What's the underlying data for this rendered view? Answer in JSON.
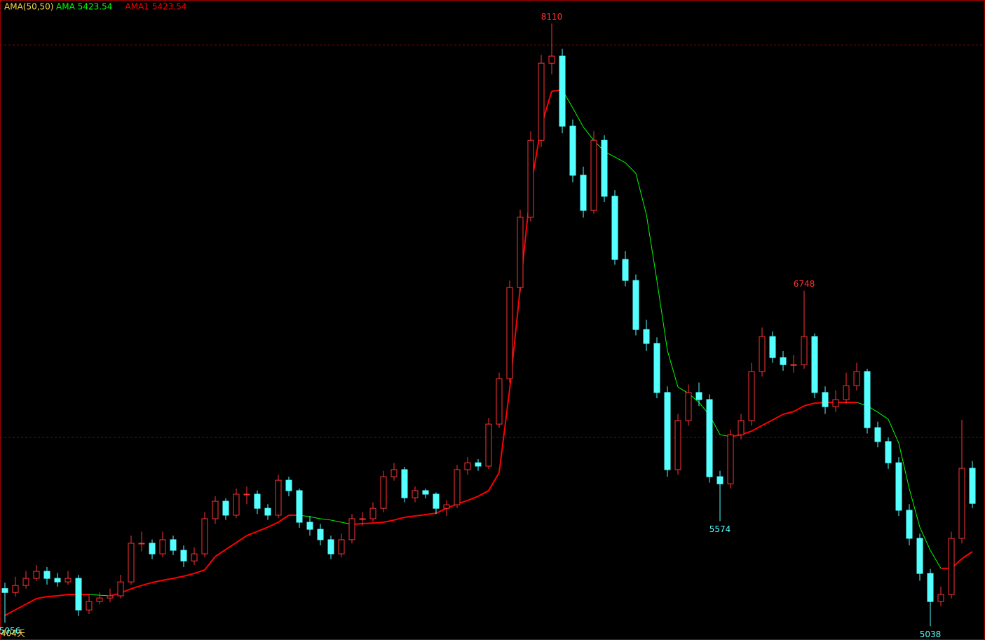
{
  "chart_data": {
    "type": "candlestick",
    "indicator": "AMA(50,50)",
    "legend": [
      {
        "name": "AMA",
        "value": 5423.54,
        "color": "#00ff00"
      },
      {
        "name": "AMA1",
        "value": 5423.54,
        "color": "#ff0000"
      }
    ],
    "period_label": "404天",
    "ylim": [
      4968,
      8229
    ],
    "yticks": [
      6000,
      8000
    ],
    "grid": true,
    "up_color": "#ff3232",
    "down_color": "#54ffff",
    "open": [
      5230,
      5210,
      5246,
      5282,
      5318,
      5282,
      5264,
      5282,
      5121,
      5164,
      5182,
      5193,
      5264,
      5461,
      5461,
      5407,
      5479,
      5425,
      5371,
      5407,
      5586,
      5675,
      5604,
      5711,
      5711,
      5639,
      5604,
      5782,
      5729,
      5568,
      5532,
      5479,
      5407,
      5479,
      5586,
      5586,
      5639,
      5800,
      5836,
      5693,
      5729,
      5711,
      5639,
      5657,
      5836,
      5871,
      5854,
      6068,
      6300,
      6764,
      7122,
      7514,
      7907,
      7943,
      7586,
      7336,
      7157,
      7514,
      7229,
      6907,
      6800,
      6550,
      6479,
      6229,
      5836,
      6086,
      6229,
      6193,
      5800,
      5764,
      6014,
      6086,
      6336,
      6514,
      6407,
      6371,
      6371,
      6514,
      6229,
      6157,
      6193,
      6264,
      6336,
      6050,
      5979,
      5871,
      5629,
      5486,
      5307,
      5164,
      5200,
      5486,
      5843
    ],
    "high": [
      5260,
      5290,
      5320,
      5350,
      5340,
      5310,
      5320,
      5300,
      5200,
      5210,
      5230,
      5300,
      5500,
      5520,
      5480,
      5520,
      5500,
      5450,
      5440,
      5620,
      5700,
      5690,
      5740,
      5750,
      5730,
      5660,
      5810,
      5800,
      5740,
      5600,
      5560,
      5500,
      5510,
      5610,
      5620,
      5670,
      5830,
      5870,
      5850,
      5750,
      5740,
      5720,
      5680,
      5860,
      5900,
      5890,
      6100,
      6330,
      6800,
      7160,
      7560,
      7950,
      8110,
      7980,
      7620,
      7380,
      7560,
      7540,
      7260,
      6950,
      6830,
      6600,
      6510,
      6260,
      6120,
      6270,
      6280,
      6220,
      5830,
      6040,
      6120,
      6380,
      6560,
      6540,
      6440,
      6420,
      6748,
      6530,
      6260,
      6240,
      6330,
      6380,
      6350,
      6080,
      6000,
      5900,
      5660,
      5510,
      5330,
      5240,
      5520,
      6090,
      5880
    ],
    "low": [
      5056,
      5190,
      5230,
      5270,
      5250,
      5240,
      5250,
      5090,
      5100,
      5150,
      5160,
      5180,
      5250,
      5420,
      5380,
      5390,
      5400,
      5340,
      5350,
      5390,
      5560,
      5580,
      5590,
      5660,
      5610,
      5580,
      5590,
      5700,
      5540,
      5500,
      5450,
      5380,
      5390,
      5460,
      5550,
      5570,
      5620,
      5780,
      5670,
      5670,
      5690,
      5610,
      5600,
      5640,
      5810,
      5830,
      5840,
      6050,
      6280,
      6740,
      7100,
      7480,
      7850,
      7550,
      7300,
      7120,
      7140,
      7200,
      6880,
      6770,
      6520,
      6440,
      6200,
      5800,
      5810,
      6060,
      6160,
      5770,
      5574,
      5740,
      5990,
      6060,
      6310,
      6380,
      6340,
      6330,
      6350,
      6200,
      6120,
      6130,
      6170,
      6240,
      6020,
      5950,
      5840,
      5600,
      5450,
      5270,
      5038,
      5140,
      5180,
      5460,
      5640
    ],
    "close": [
      5210,
      5246,
      5282,
      5318,
      5282,
      5264,
      5282,
      5121,
      5164,
      5182,
      5193,
      5264,
      5461,
      5461,
      5407,
      5479,
      5425,
      5371,
      5407,
      5586,
      5675,
      5604,
      5711,
      5711,
      5639,
      5604,
      5782,
      5729,
      5568,
      5532,
      5479,
      5407,
      5479,
      5586,
      5586,
      5639,
      5800,
      5836,
      5693,
      5729,
      5711,
      5639,
      5657,
      5836,
      5871,
      5854,
      6068,
      6300,
      6764,
      7122,
      7514,
      7907,
      7943,
      7586,
      7336,
      7157,
      7514,
      7229,
      6907,
      6800,
      6550,
      6479,
      6229,
      5836,
      6086,
      6229,
      6193,
      5800,
      5764,
      6014,
      6086,
      6336,
      6514,
      6407,
      6371,
      6371,
      6514,
      6229,
      6157,
      6193,
      6264,
      6336,
      6050,
      5979,
      5871,
      5629,
      5486,
      5307,
      5164,
      5200,
      5486,
      5843,
      5664
    ],
    "ama": [
      5093,
      5122,
      5150,
      5179,
      5189,
      5193,
      5200,
      5200,
      5200,
      5196,
      5193,
      5207,
      5229,
      5246,
      5261,
      5272,
      5282,
      5293,
      5307,
      5325,
      5393,
      5429,
      5464,
      5500,
      5521,
      5543,
      5568,
      5604,
      5604,
      5596,
      5586,
      5579,
      5568,
      5557,
      5561,
      5564,
      5568,
      5579,
      5593,
      5600,
      5607,
      5614,
      5639,
      5661,
      5679,
      5700,
      5729,
      5821,
      6246,
      6761,
      7272,
      7586,
      7764,
      7771,
      7679,
      7582,
      7514,
      7457,
      7429,
      7400,
      7346,
      7136,
      6800,
      6443,
      6257,
      6225,
      6179,
      6114,
      6014,
      6004,
      6014,
      6032,
      6061,
      6089,
      6118,
      6132,
      6161,
      6175,
      6179,
      6179,
      6179,
      6179,
      6161,
      6129,
      6093,
      5971,
      5739,
      5543,
      5425,
      5333,
      5333,
      5382,
      5418
    ],
    "annotations": [
      {
        "value": 8110,
        "candle": 52
      },
      {
        "value": 6748,
        "candle": 76
      },
      {
        "value": 5574,
        "candle": 68
      },
      {
        "value": 5038,
        "candle": 88
      },
      {
        "value": 5056,
        "candle": 0
      }
    ]
  }
}
